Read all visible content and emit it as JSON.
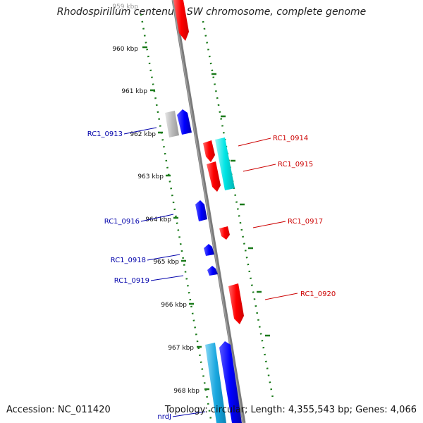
{
  "title": "Rhodospirillum centenum SW chromosome, complete genome",
  "accession": "Accession: NC_011420",
  "topology": "Topology: circular; Length: 4,355,543 bp; Genes: 4,066",
  "colors": {
    "backbone": "#7a7a7a",
    "ticks": "#1a7a1a",
    "forward_gene": "#ff0000",
    "reverse_gene": "#0000ff",
    "forward_label": "#cc0000",
    "reverse_label": "#0000aa",
    "cds_cyan": "#00e5e5",
    "pseudo_grey": "#bbbbbb"
  },
  "scale_ticks": [
    "959 kbp",
    "960 kbp",
    "961 kbp",
    "962 kbp",
    "963 kbp",
    "964 kbp",
    "965 kbp",
    "966 kbp",
    "967 kbp",
    "968 kbp"
  ],
  "forward_labels": [
    "RC1_0914",
    "RC1_0915",
    "RC1_0917",
    "RC1_0920"
  ],
  "reverse_labels": [
    "RC1_0913",
    "RC1_0916",
    "RC1_0918",
    "RC1_0919",
    "nrdJ"
  ]
}
